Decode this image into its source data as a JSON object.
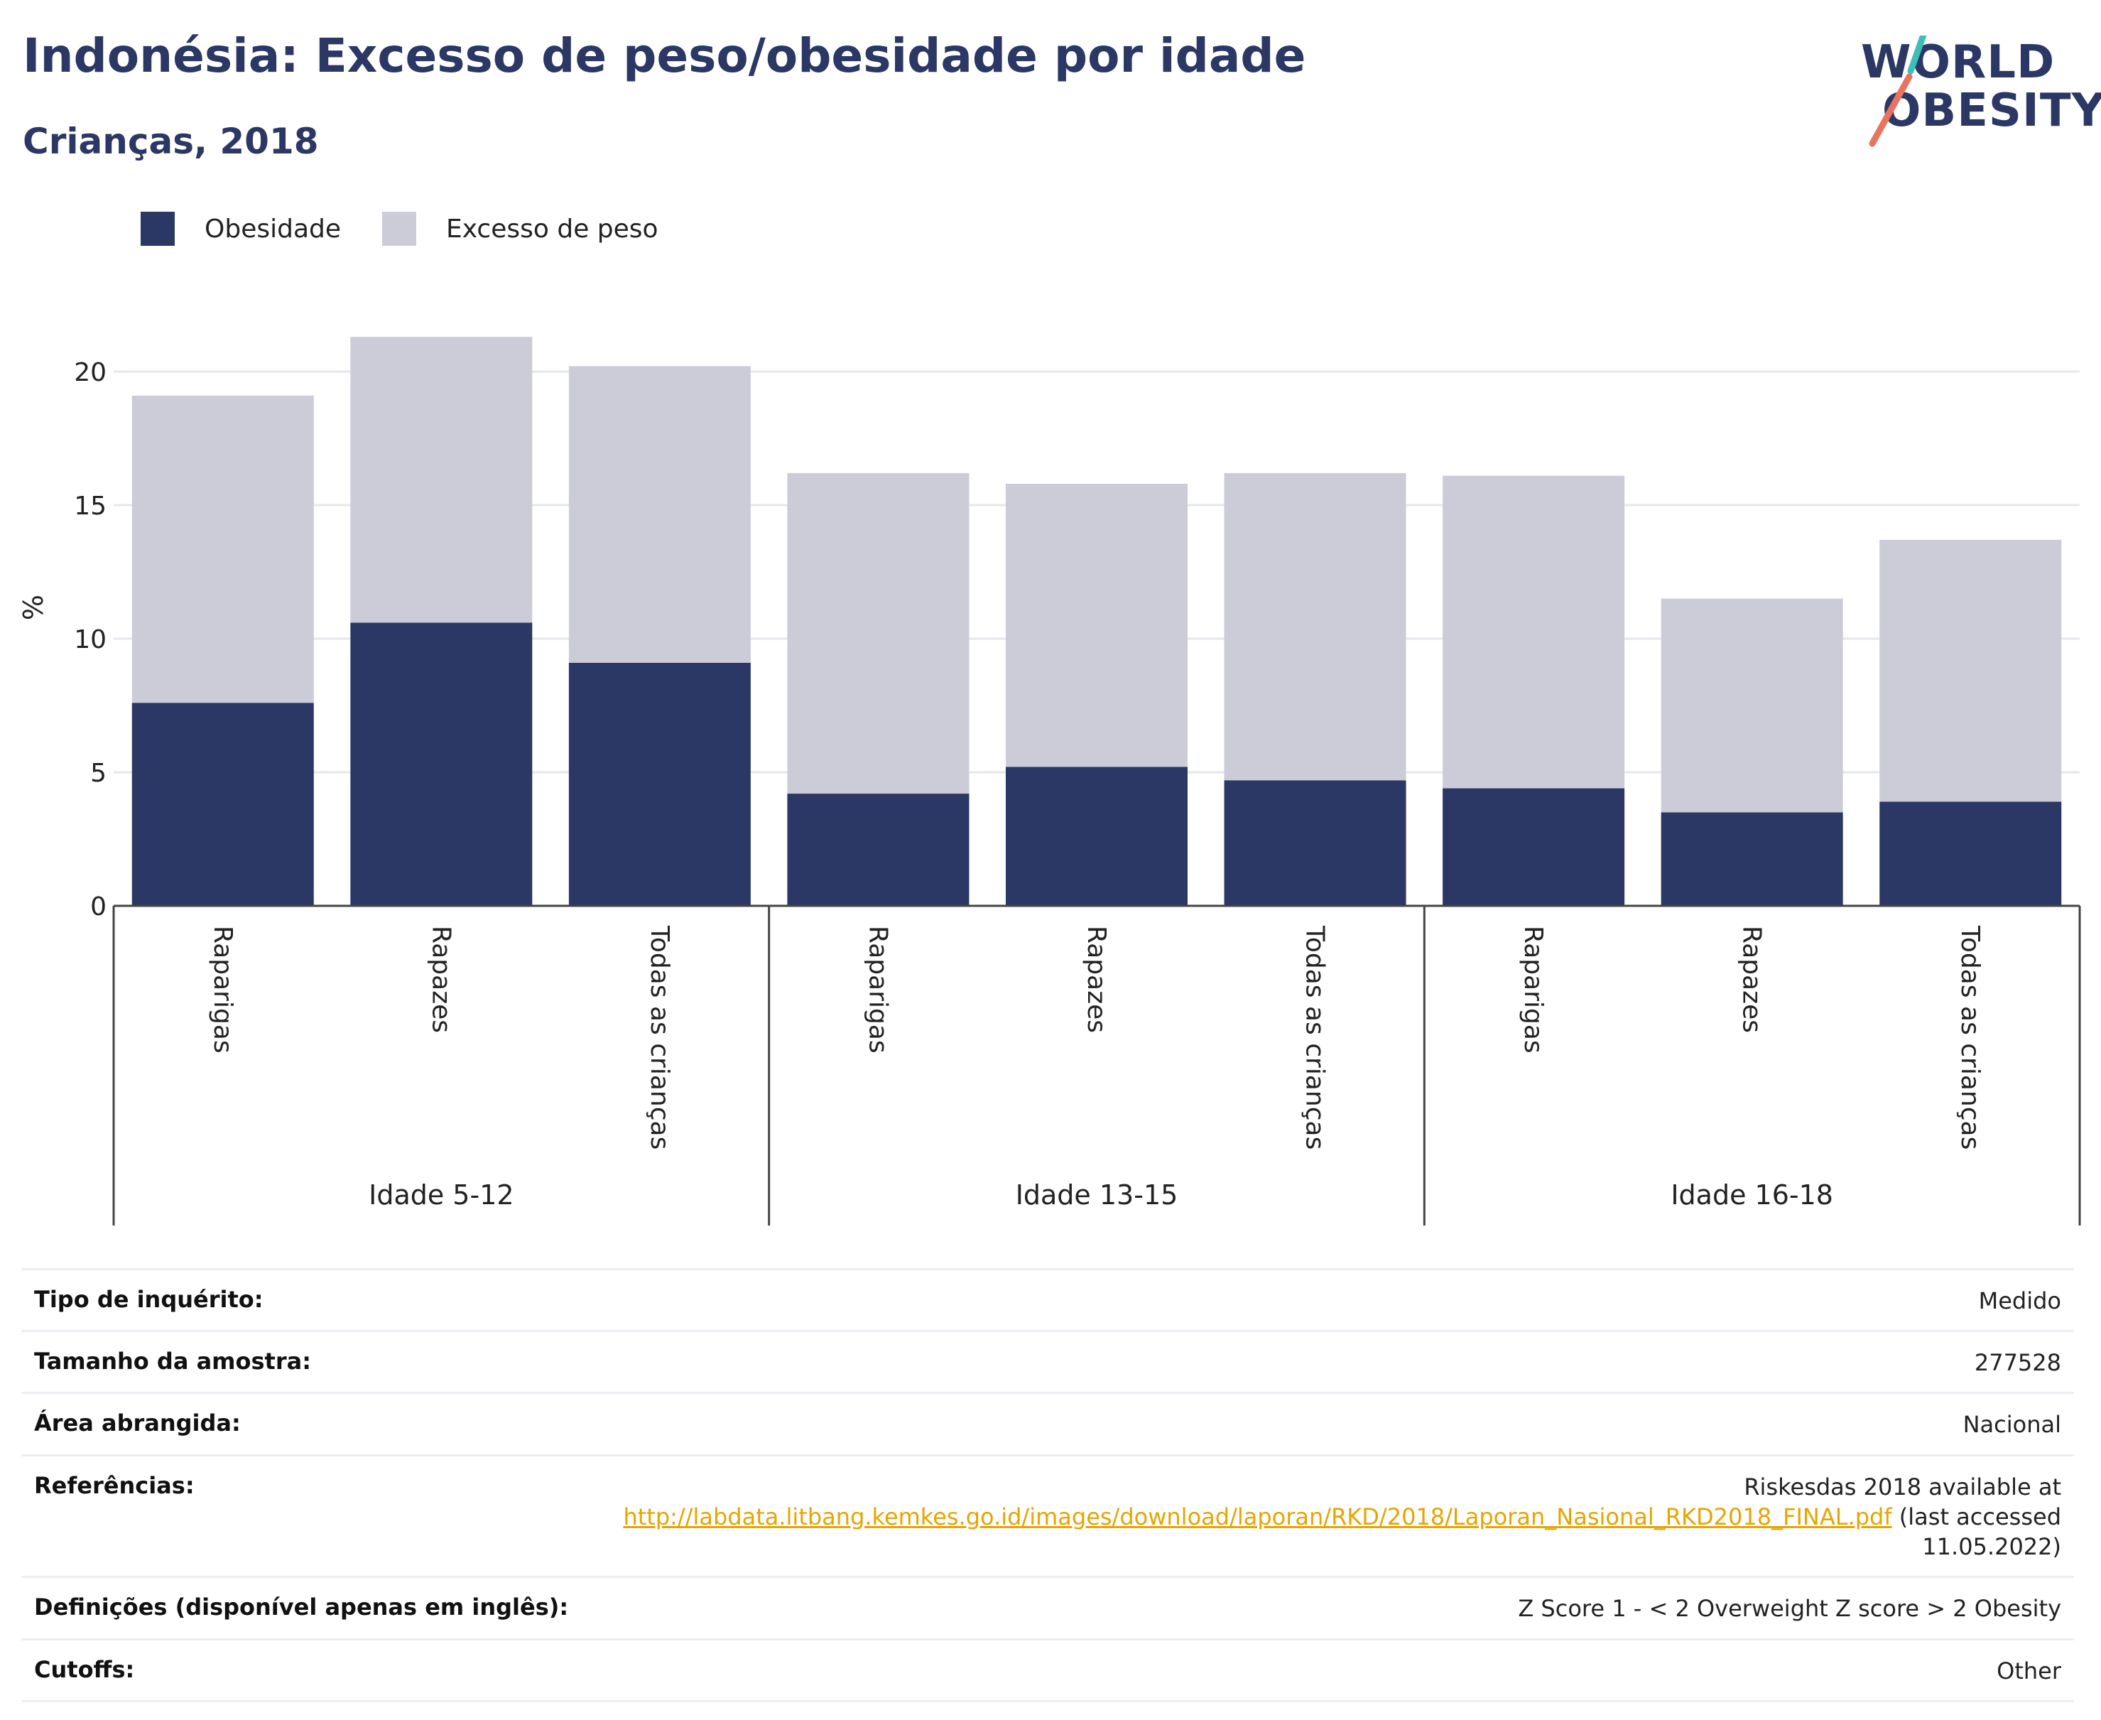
{
  "header": {
    "title": "Indonésia: Excesso de peso/obesidade por idade",
    "subtitle": "Crianças, 2018",
    "logo_line1": "WORLD",
    "logo_line2": "OBESITY"
  },
  "legend": {
    "items": [
      {
        "label": "Obesidade",
        "color": "#2b3764"
      },
      {
        "label": "Excesso de peso",
        "color": "#cbccd8"
      }
    ]
  },
  "chart_data": {
    "type": "bar",
    "stacked": true,
    "ylabel": "%",
    "ylim": [
      0,
      22
    ],
    "yticks": [
      0,
      5,
      10,
      15,
      20
    ],
    "grid": true,
    "legend_position": "top-left",
    "groups": [
      {
        "label": "Idade 5-12",
        "categories": [
          "Raparigas",
          "Rapazes",
          "Todas as crianças"
        ]
      },
      {
        "label": "Idade 13-15",
        "categories": [
          "Raparigas",
          "Rapazes",
          "Todas as crianças"
        ]
      },
      {
        "label": "Idade 16-18",
        "categories": [
          "Raparigas",
          "Rapazes",
          "Todas as crianças"
        ]
      }
    ],
    "series": [
      {
        "name": "Obesidade",
        "color": "#2b3764",
        "values": [
          7.6,
          10.6,
          9.1,
          4.2,
          5.2,
          4.7,
          4.4,
          3.5,
          3.9
        ]
      },
      {
        "name": "Excesso de peso",
        "color": "#cbccd8",
        "values": [
          11.5,
          10.7,
          11.1,
          12.0,
          10.6,
          11.5,
          11.7,
          8.0,
          9.8
        ]
      }
    ]
  },
  "meta": {
    "rows": [
      {
        "label": "Tipo de inquérito:",
        "value": "Medido"
      },
      {
        "label": "Tamanho da amostra:",
        "value": "277528"
      },
      {
        "label": "Área abrangida:",
        "value": "Nacional"
      },
      {
        "label": "Referências:",
        "value_prefix": "Riskesdas 2018 available at",
        "link": "http://labdata.litbang.kemkes.go.id/images/download/laporan/RKD/2018/Laporan_Nasional_RKD2018_FINAL.pdf",
        "value_suffix": " (last accessed",
        "value_suffix2": "11.05.2022)"
      },
      {
        "label": "Definições (disponível apenas em inglês):",
        "value": "Z Score 1 - < 2 Overweight Z score > 2 Obesity"
      },
      {
        "label": "Cutoffs:",
        "value": "Other"
      }
    ]
  }
}
